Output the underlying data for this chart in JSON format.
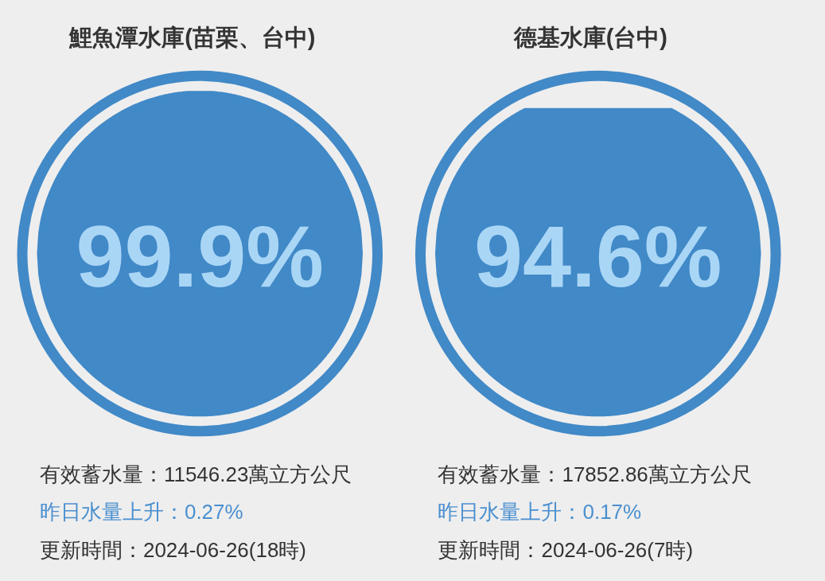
{
  "chart_data": [
    {
      "type": "other",
      "title": "鯉魚潭水庫(苗栗、台中)",
      "values": [
        99.9
      ],
      "value_labels": [
        "99.9%"
      ],
      "color": "#4189c7",
      "annotations": [
        "有效蓄水量：11546.23萬立方公尺",
        "昨日水量上升：0.27%",
        "更新時間：2024-06-26(18時)"
      ]
    },
    {
      "type": "other",
      "title": "德基水庫(台中)",
      "values": [
        94.6
      ],
      "value_labels": [
        "94.6%"
      ],
      "color": "#4189c7",
      "annotations": [
        "有效蓄水量：17852.86萬立方公尺",
        "昨日水量上升：0.17%",
        "更新時間：2024-06-26(7時)"
      ]
    }
  ]
}
